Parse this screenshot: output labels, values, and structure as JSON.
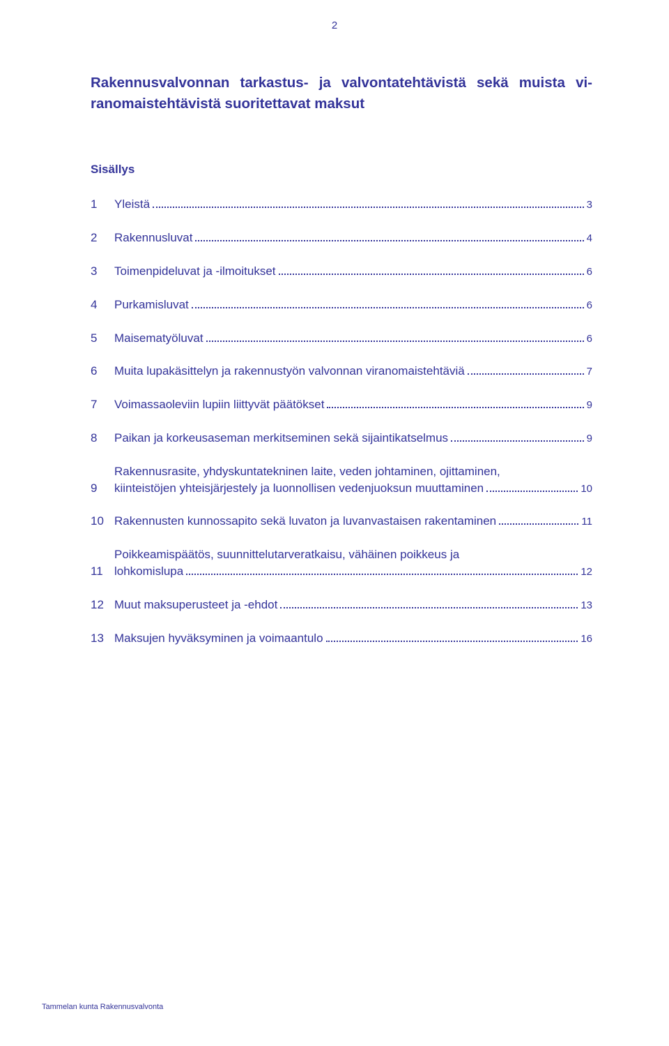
{
  "page_number": "2",
  "title": "Rakennusvalvonnan tarkastus- ja valvontatehtävistä sekä muista vi-ranomaistehtävistä suoritettavat maksut",
  "contents_label": "Sisällys",
  "footer": "Tammelan kunta Rakennusvalvonta",
  "colors": {
    "text": "#333399",
    "background": "#ffffff"
  },
  "typography": {
    "title_fontsize_pt": 16,
    "body_fontsize_pt": 13,
    "page_number_fontsize_pt": 11,
    "footer_fontsize_pt": 8,
    "font_family": "Verdana"
  },
  "toc": [
    {
      "num": "1",
      "lines": [
        "Yleistä"
      ],
      "page": "3"
    },
    {
      "num": "2",
      "lines": [
        "Rakennusluvat"
      ],
      "page": "4"
    },
    {
      "num": "3",
      "lines": [
        "Toimenpideluvat ja -ilmoitukset"
      ],
      "page": "6"
    },
    {
      "num": "4",
      "lines": [
        "Purkamisluvat"
      ],
      "page": "6"
    },
    {
      "num": "5",
      "lines": [
        "Maisematyöluvat"
      ],
      "page": "6"
    },
    {
      "num": "6",
      "lines": [
        "Muita lupakäsittelyn ja rakennustyön valvonnan viranomaistehtäviä"
      ],
      "page": "7"
    },
    {
      "num": "7",
      "lines": [
        "Voimassaoleviin lupiin liittyvät päätökset"
      ],
      "page": "9"
    },
    {
      "num": "8",
      "lines": [
        "Paikan ja korkeusaseman merkitseminen sekä sijaintikatselmus"
      ],
      "page": "9"
    },
    {
      "num": "9",
      "lines": [
        "Rakennusrasite, yhdyskuntatekninen laite, veden johtaminen, ojittaminen,",
        "kiinteistöjen yhteisjärjestely ja luonnollisen vedenjuoksun muuttaminen"
      ],
      "page": "10"
    },
    {
      "num": "10",
      "lines": [
        "Rakennusten kunnossapito sekä luvaton ja luvanvastaisen rakentaminen"
      ],
      "page": "11",
      "sep": "."
    },
    {
      "num": "11",
      "lines": [
        "Poikkeamispäätös, suunnittelutarveratkaisu, vähäinen poikkeus ja",
        "lohkomislupa"
      ],
      "page": "12"
    },
    {
      "num": "12",
      "lines": [
        "Muut maksuperusteet ja -ehdot"
      ],
      "page": "13"
    },
    {
      "num": "13",
      "lines": [
        "Maksujen hyväksyminen ja voimaantulo"
      ],
      "page": "16"
    }
  ]
}
